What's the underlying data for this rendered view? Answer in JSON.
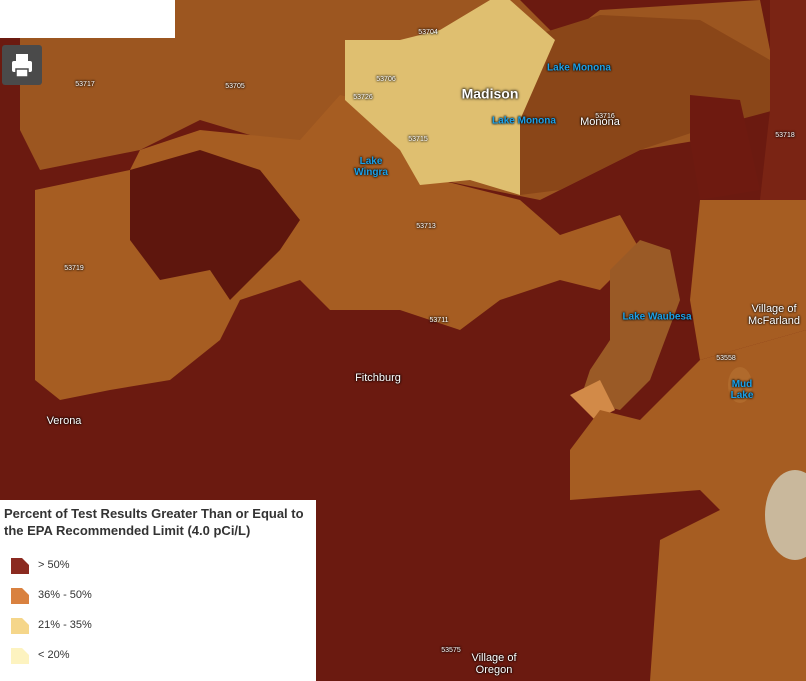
{
  "legend": {
    "title": "Percent of Test Results Greater Than or Equal to the EPA Recommended Limit (4.0 pCi/L)",
    "items": [
      {
        "label": "> 50%",
        "color": "#8b2a20"
      },
      {
        "label": "36% - 50%",
        "color": "#d9813f"
      },
      {
        "label": "21% - 35%",
        "color": "#f5d68a"
      },
      {
        "label": "< 20%",
        "color": "#fdf3c0"
      }
    ]
  },
  "places": [
    "Madison",
    "Monona",
    "Fitchburg",
    "Verona",
    "Village of McFarland",
    "Village of Oregon"
  ],
  "lakes": [
    "Lake Monona",
    "Lake Monona",
    "Lake Wingra",
    "Lake Waubesa",
    "Mud Lake"
  ],
  "zips": [
    "53704",
    "53717",
    "53705",
    "53706",
    "53726",
    "53716",
    "53715",
    "53718",
    "53713",
    "53719",
    "53711",
    "53558",
    "53575"
  ]
}
